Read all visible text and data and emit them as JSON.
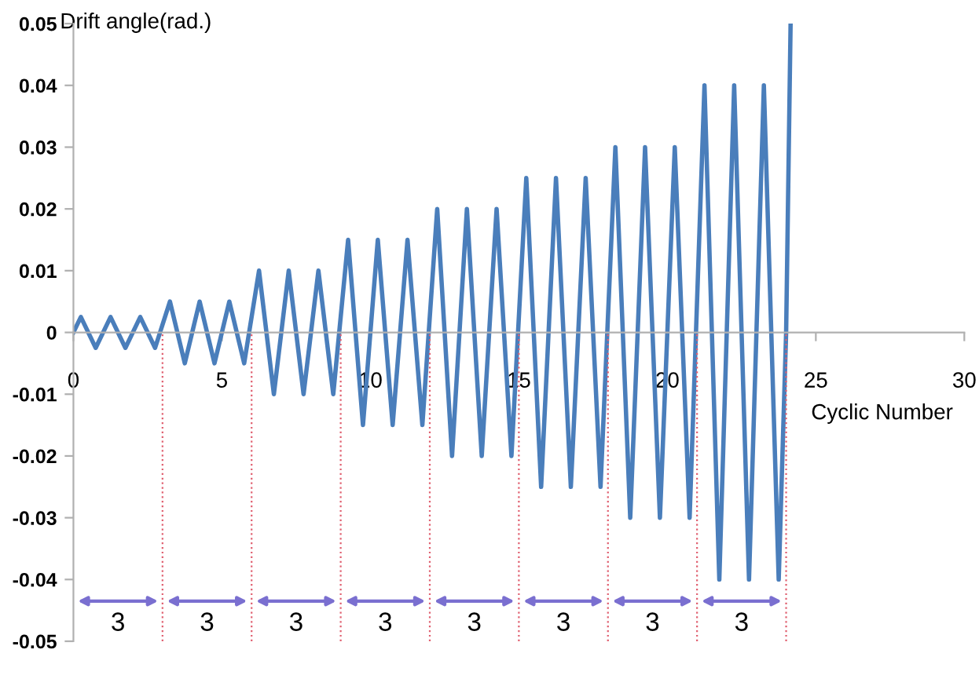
{
  "chart_data": {
    "type": "line",
    "xlabel": "Cyclic Number",
    "ylabel": "Drift angle(rad.)",
    "x": [
      0,
      0.25,
      0.75,
      1.25,
      1.75,
      2.25,
      2.75,
      3.25,
      3.75,
      4.25,
      4.75,
      5.25,
      5.75,
      6.25,
      6.75,
      7.25,
      7.75,
      8.25,
      8.75,
      9.25,
      9.75,
      10.25,
      10.75,
      11.25,
      11.75,
      12.25,
      12.75,
      13.25,
      13.75,
      14.25,
      14.75,
      15.25,
      15.75,
      16.25,
      16.75,
      17.25,
      17.75,
      18.25,
      18.75,
      19.25,
      19.75,
      20.25,
      20.75,
      21.25,
      21.75,
      22.25,
      22.75,
      23.25,
      23.75,
      24,
      24.15
    ],
    "series": [
      {
        "color": "#4a7ebb",
        "values": [
          0,
          0.0025,
          -0.0025,
          0.0025,
          -0.0025,
          0.0025,
          -0.0025,
          0.005,
          -0.005,
          0.005,
          -0.005,
          0.005,
          -0.005,
          0.01,
          -0.01,
          0.01,
          -0.01,
          0.01,
          -0.01,
          0.015,
          -0.015,
          0.015,
          -0.015,
          0.015,
          -0.015,
          0.02,
          -0.02,
          0.02,
          -0.02,
          0.02,
          -0.02,
          0.025,
          -0.025,
          0.025,
          -0.025,
          0.025,
          -0.025,
          0.03,
          -0.03,
          0.03,
          -0.03,
          0.03,
          -0.03,
          0.04,
          -0.04,
          0.04,
          -0.04,
          0.04,
          -0.04,
          0,
          0.05
        ]
      }
    ],
    "xlim": [
      0,
      30
    ],
    "ylim": [
      -0.05,
      0.05
    ],
    "xticks": [
      0,
      5,
      10,
      15,
      20,
      25,
      30
    ],
    "yticks": [
      -0.05,
      -0.04,
      -0.03,
      -0.02,
      -0.01,
      0,
      0.01,
      0.02,
      0.03,
      0.04,
      0.05
    ],
    "grid": false,
    "marker": "none",
    "line_style": "solid",
    "ref_lines": [
      {
        "axis": "x",
        "value": 3,
        "color": "#e06070",
        "line_style": "dotted"
      },
      {
        "axis": "x",
        "value": 6,
        "color": "#e06070",
        "line_style": "dotted"
      },
      {
        "axis": "x",
        "value": 9,
        "color": "#e06070",
        "line_style": "dotted"
      },
      {
        "axis": "x",
        "value": 12,
        "color": "#e06070",
        "line_style": "dotted"
      },
      {
        "axis": "x",
        "value": 15,
        "color": "#e06070",
        "line_style": "dotted"
      },
      {
        "axis": "x",
        "value": 18,
        "color": "#e06070",
        "line_style": "dotted"
      },
      {
        "axis": "x",
        "value": 21,
        "color": "#e06070",
        "line_style": "dotted"
      },
      {
        "axis": "x",
        "value": 24,
        "color": "#e06070",
        "line_style": "dotted"
      }
    ],
    "annotations": [
      "3",
      "3",
      "3",
      "3",
      "3",
      "3",
      "3",
      "3"
    ]
  }
}
